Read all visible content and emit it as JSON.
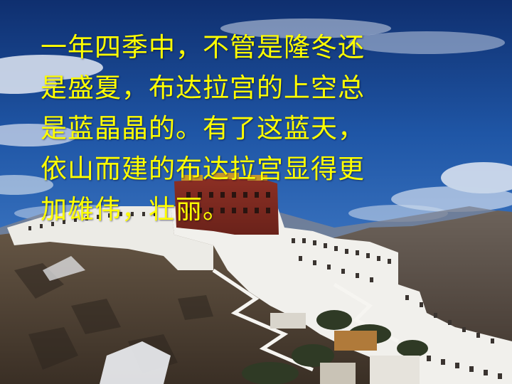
{
  "slide": {
    "text_color": "#ffff00",
    "background_description_colors": {
      "sky": "#1d4f9a",
      "cloud": "#dfe6f2",
      "palace_white": "#efefec",
      "palace_red": "#7e2a20",
      "mountain": "#5d5046"
    },
    "caption_lines": [
      "一年四季中，不管是隆冬还",
      "是盛夏，布达拉宫的上空总",
      "是蓝晶晶的。有了这蓝天，",
      "依山而建的布达拉宫显得更",
      "加雄伟，壮丽。"
    ]
  }
}
